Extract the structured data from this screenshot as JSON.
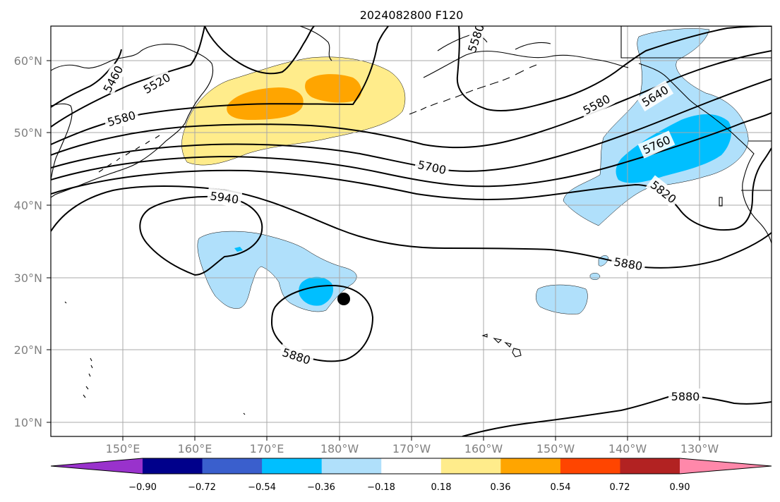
{
  "title": "2024082800 F120",
  "map": {
    "lat_ticks": [
      "60°N",
      "50°N",
      "40°N",
      "30°N",
      "20°N",
      "10°N"
    ],
    "lon_ticks": [
      "150°E",
      "160°E",
      "170°E",
      "180°W",
      "170°W",
      "160°W",
      "150°W",
      "140°W",
      "130°W"
    ],
    "lat_range_deg": [
      8,
      65
    ],
    "lon_range_deg_east": [
      140,
      242
    ],
    "gridlines": true
  },
  "contours": {
    "labels": [
      "5460",
      "5520",
      "5580",
      "5580",
      "5640",
      "5700",
      "5760",
      "5820",
      "5940",
      "5880",
      "5880",
      "5880",
      "5580"
    ]
  },
  "shading_colors": {
    "strong_negative": "#00bfff",
    "weak_negative": "#b0e0fb",
    "weak_positive": "#ffec8b",
    "moderate_positive": "#ffa500"
  },
  "colorbar": {
    "colors": [
      "#9932cc",
      "#00008b",
      "#3a5fcd",
      "#00bfff",
      "#b0e0fb",
      "#ffffff",
      "#ffec8b",
      "#ffa500",
      "#ff4500",
      "#b22222",
      "#ff88aa"
    ],
    "labels": [
      "−0.90",
      "−0.72",
      "−0.54",
      "−0.36",
      "−0.18",
      "0.18",
      "0.36",
      "0.54",
      "0.72",
      "0.90"
    ]
  },
  "marker_color": "#000000"
}
